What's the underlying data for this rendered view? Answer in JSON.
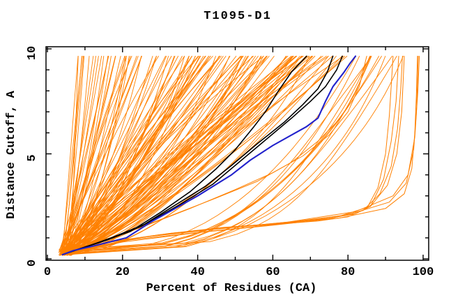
{
  "chart_data": {
    "type": "line",
    "title": "T1095-D1",
    "xlabel": "Percent of Residues (CA)",
    "ylabel": "Distance Cutoff, A",
    "xlim": [
      0,
      100
    ],
    "ylim": [
      0,
      10
    ],
    "x_ticks_major": [
      0,
      20,
      40,
      60,
      80,
      100
    ],
    "x_ticks_minor": [
      10,
      30,
      50,
      70,
      90
    ],
    "y_ticks_major": [
      0,
      5,
      10
    ],
    "y_ticks_minor": [
      1,
      2,
      3,
      4,
      6,
      7,
      8,
      9
    ],
    "grid": false,
    "legend_position": "none",
    "curve_top_cutoff": 9.65,
    "colors": {
      "background_models": "#ff8000",
      "highlight_models": "#000000",
      "best_model": "#2222cc",
      "axis": "#000000",
      "plot_background": "#ffffff"
    },
    "highlight_series": [
      {
        "name": "black-model-1",
        "color": "#000000",
        "width": 1.6,
        "points": [
          [
            4,
            0.2
          ],
          [
            8,
            0.45
          ],
          [
            14,
            0.8
          ],
          [
            22,
            1.3
          ],
          [
            30,
            2.2
          ],
          [
            38,
            3.2
          ],
          [
            45,
            4.3
          ],
          [
            50,
            5.2
          ],
          [
            55,
            6.3
          ],
          [
            58,
            7.0
          ],
          [
            61.5,
            8.0
          ],
          [
            65,
            8.9
          ],
          [
            69,
            9.65
          ]
        ]
      },
      {
        "name": "black-model-2",
        "color": "#000000",
        "width": 1.6,
        "points": [
          [
            4,
            0.2
          ],
          [
            9,
            0.5
          ],
          [
            16,
            0.9
          ],
          [
            25,
            1.55
          ],
          [
            33,
            2.45
          ],
          [
            42,
            3.45
          ],
          [
            49,
            4.45
          ],
          [
            56,
            5.5
          ],
          [
            63,
            6.5
          ],
          [
            68,
            7.35
          ],
          [
            72,
            8.1
          ],
          [
            74.5,
            8.9
          ],
          [
            76,
            9.65
          ]
        ]
      },
      {
        "name": "black-model-3",
        "color": "#000000",
        "width": 1.6,
        "points": [
          [
            4,
            0.2
          ],
          [
            10,
            0.55
          ],
          [
            17,
            1.0
          ],
          [
            26,
            1.65
          ],
          [
            35,
            2.55
          ],
          [
            44,
            3.55
          ],
          [
            51,
            4.6
          ],
          [
            58,
            5.65
          ],
          [
            65,
            6.7
          ],
          [
            70,
            7.5
          ],
          [
            74,
            8.2
          ],
          [
            77,
            9.0
          ],
          [
            78.5,
            9.65
          ]
        ]
      },
      {
        "name": "blue-model",
        "color": "#2222cc",
        "width": 2.1,
        "points": [
          [
            4,
            0.2
          ],
          [
            7,
            0.4
          ],
          [
            12,
            0.6
          ],
          [
            21,
            1.0
          ],
          [
            28,
            1.8
          ],
          [
            33,
            2.3
          ],
          [
            40,
            3.0
          ],
          [
            49,
            4.0
          ],
          [
            54,
            4.7
          ],
          [
            60,
            5.4
          ],
          [
            66,
            6.0
          ],
          [
            69,
            6.3
          ],
          [
            72,
            6.7
          ],
          [
            74,
            7.5
          ],
          [
            76,
            8.2
          ],
          [
            79,
            8.9
          ],
          [
            80.5,
            9.3
          ],
          [
            82,
            9.65
          ]
        ]
      }
    ],
    "outlier_series": [
      {
        "name": "flat-right-1",
        "points": [
          [
            4,
            0.25
          ],
          [
            15,
            0.75
          ],
          [
            30,
            1.15
          ],
          [
            45,
            1.45
          ],
          [
            61,
            1.65
          ],
          [
            72,
            1.8
          ],
          [
            80,
            2.0
          ],
          [
            85,
            2.4
          ],
          [
            88,
            3.4
          ],
          [
            90,
            5.0
          ],
          [
            91,
            6.8
          ],
          [
            92,
            9.65
          ]
        ]
      },
      {
        "name": "flat-right-2",
        "points": [
          [
            4.5,
            0.25
          ],
          [
            16,
            0.8
          ],
          [
            32,
            1.2
          ],
          [
            47,
            1.5
          ],
          [
            63,
            1.7
          ],
          [
            74,
            1.9
          ],
          [
            82,
            2.15
          ],
          [
            86,
            2.5
          ],
          [
            89.5,
            3.8
          ],
          [
            91.5,
            5.6
          ],
          [
            92.8,
            7.5
          ],
          [
            93.5,
            9.65
          ]
        ]
      },
      {
        "name": "flat-right-3",
        "points": [
          [
            4,
            0.2
          ],
          [
            18,
            0.85
          ],
          [
            35,
            1.25
          ],
          [
            52,
            1.55
          ],
          [
            66,
            1.78
          ],
          [
            78,
            2.05
          ],
          [
            86,
            2.5
          ],
          [
            90.5,
            3.5
          ],
          [
            93,
            5.0
          ],
          [
            94.3,
            7.0
          ],
          [
            95,
            9.65
          ]
        ]
      },
      {
        "name": "flat-right-4",
        "points": [
          [
            4.2,
            0.22
          ],
          [
            17,
            0.8
          ],
          [
            33,
            1.22
          ],
          [
            49,
            1.52
          ],
          [
            64,
            1.72
          ],
          [
            76,
            1.95
          ],
          [
            84,
            2.3
          ],
          [
            88.5,
            3.1
          ],
          [
            91.5,
            4.4
          ],
          [
            93.2,
            6.2
          ],
          [
            94,
            8.0
          ],
          [
            94.5,
            9.65
          ]
        ]
      },
      {
        "name": "far-right-1",
        "points": [
          [
            4,
            0.2
          ],
          [
            20,
            0.8
          ],
          [
            40,
            1.25
          ],
          [
            60,
            1.6
          ],
          [
            78,
            1.95
          ],
          [
            90,
            2.4
          ],
          [
            95,
            3.1
          ],
          [
            97,
            4.3
          ],
          [
            97.8,
            6.0
          ],
          [
            98.2,
            7.8
          ],
          [
            98.5,
            9.65
          ]
        ]
      },
      {
        "name": "far-right-2",
        "points": [
          [
            4.5,
            0.25
          ],
          [
            22,
            0.9
          ],
          [
            42,
            1.3
          ],
          [
            62,
            1.65
          ],
          [
            80,
            2.1
          ],
          [
            91,
            2.7
          ],
          [
            95.5,
            3.6
          ],
          [
            97.5,
            5.2
          ],
          [
            98.3,
            7.2
          ],
          [
            98.7,
            9.65
          ]
        ]
      },
      {
        "name": "far-right-3",
        "points": [
          [
            5,
            0.3
          ],
          [
            24,
            1.0
          ],
          [
            44,
            1.4
          ],
          [
            64,
            1.75
          ],
          [
            82,
            2.25
          ],
          [
            92,
            3.0
          ],
          [
            96,
            4.0
          ],
          [
            97.8,
            5.8
          ],
          [
            98.6,
            8.0
          ],
          [
            99,
            9.65
          ]
        ]
      },
      {
        "name": "mid-bow-1",
        "points": [
          [
            4,
            0.25
          ],
          [
            12,
            0.7
          ],
          [
            25,
            1.5
          ],
          [
            38,
            2.4
          ],
          [
            50,
            3.3
          ],
          [
            60,
            4.1
          ],
          [
            68,
            4.9
          ],
          [
            75,
            5.9
          ],
          [
            80,
            7.0
          ],
          [
            83,
            8.2
          ],
          [
            85,
            9.65
          ]
        ]
      },
      {
        "name": "mid-bow-2",
        "points": [
          [
            4,
            0.2
          ],
          [
            10,
            0.6
          ],
          [
            20,
            1.2
          ],
          [
            32,
            2.0
          ],
          [
            45,
            2.9
          ],
          [
            56,
            3.7
          ],
          [
            65,
            4.6
          ],
          [
            72,
            5.6
          ],
          [
            78,
            6.7
          ],
          [
            82,
            7.9
          ],
          [
            84.5,
            9.0
          ],
          [
            86,
            9.65
          ]
        ]
      }
    ],
    "background_models": {
      "count": 132,
      "seed": 1337,
      "start_percent_range": [
        3,
        6.5
      ],
      "start_cutoff_range": [
        0.15,
        0.45
      ],
      "top_percent_range": [
        8,
        80
      ],
      "shape_exponent_range": [
        0.55,
        1.15
      ],
      "waviness": 0.12
    },
    "right_spread_models": {
      "count": 12,
      "seed": 77,
      "start_percent_range": [
        3.5,
        6.5
      ],
      "start_cutoff_range": [
        0.2,
        0.5
      ],
      "top_percent_range": [
        82,
        96
      ],
      "shape_exponent_range": [
        0.25,
        0.42
      ],
      "waviness": 0.08
    }
  }
}
